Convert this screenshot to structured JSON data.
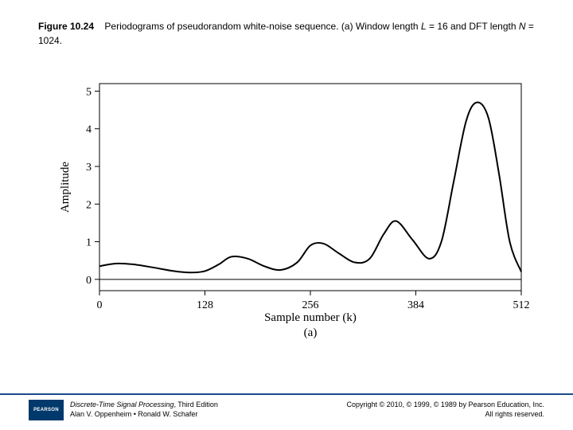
{
  "caption": {
    "figure_label": "Figure 10.24",
    "text_before_L": "Periodograms of pseudorandom white-noise sequence. (a) Window length ",
    "L_var": "L",
    "L_eq": " = 16 and DFT length ",
    "N_var": "N",
    "N_eq": " = 1024."
  },
  "chart": {
    "type": "line",
    "xlabel": "Sample number (k)",
    "ylabel": "Amplitude",
    "subcaption": "(a)",
    "xlim": [
      0,
      512
    ],
    "ylim": [
      -0.3,
      5.2
    ],
    "xticks": [
      0,
      128,
      256,
      384,
      512
    ],
    "yticks": [
      0,
      1,
      2,
      3,
      4,
      5
    ],
    "axis_color": "#000000",
    "line_color": "#000000",
    "line_width": 2,
    "background": "#ffffff",
    "label_fontsize": 15,
    "tick_fontsize": 14,
    "x": [
      0,
      20,
      40,
      64,
      90,
      110,
      128,
      145,
      160,
      180,
      200,
      220,
      240,
      256,
      272,
      290,
      310,
      328,
      345,
      360,
      380,
      400,
      415,
      430,
      445,
      458,
      472,
      485,
      498,
      512
    ],
    "y": [
      0.35,
      0.42,
      0.4,
      0.32,
      0.22,
      0.18,
      0.22,
      0.4,
      0.6,
      0.55,
      0.35,
      0.25,
      0.45,
      0.9,
      0.95,
      0.7,
      0.45,
      0.55,
      1.2,
      1.55,
      1.05,
      0.55,
      1.0,
      2.6,
      4.2,
      4.7,
      4.3,
      2.8,
      1.0,
      0.2
    ]
  },
  "footer": {
    "publisher_logo": "PEARSON",
    "book_title": "Discrete-Time Signal Processing",
    "book_edition": ", Third Edition",
    "authors": "Alan V. Oppenheim • Ronald W. Schafer",
    "copyright_line1": "Copyright © 2010, © 1999, © 1989 by Pearson Education, Inc.",
    "copyright_line2": "All rights reserved."
  }
}
